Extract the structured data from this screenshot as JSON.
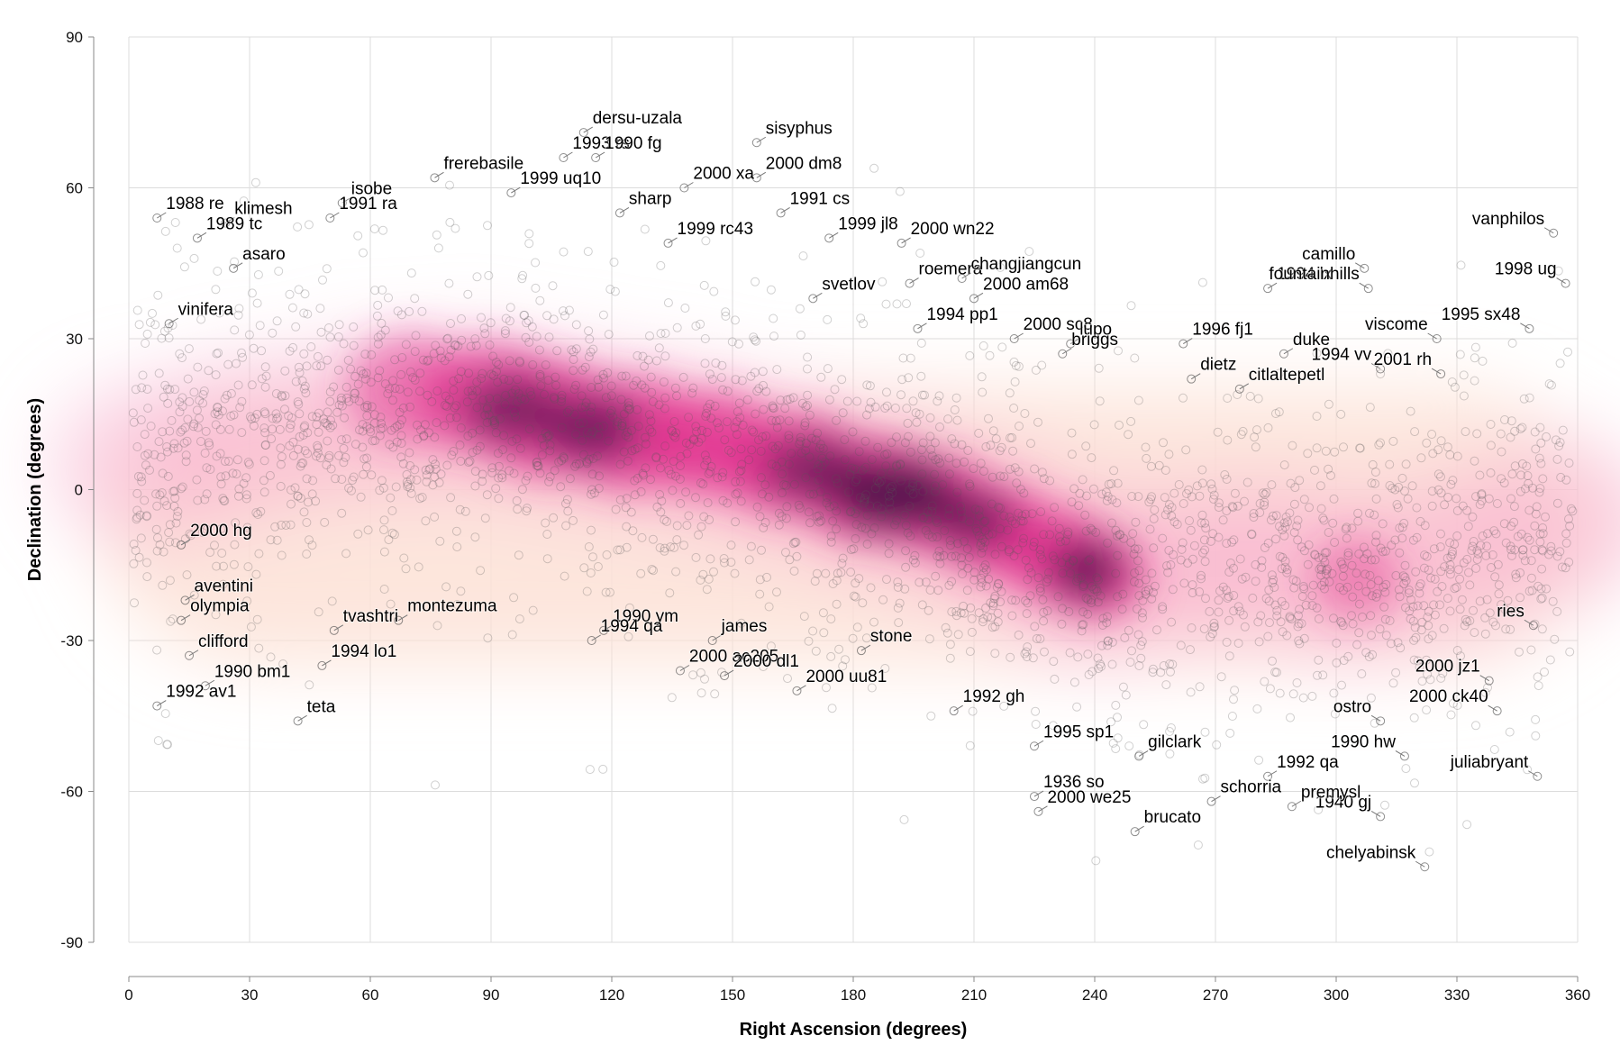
{
  "chart_data": {
    "type": "scatter",
    "title": "",
    "xlabel": "Right Ascension (degrees)",
    "ylabel": "Declination (degrees)",
    "xlim": [
      0,
      360
    ],
    "ylim": [
      -90,
      90
    ],
    "x_ticks": [
      "0",
      "30",
      "60",
      "90",
      "120",
      "150",
      "180",
      "210",
      "240",
      "270",
      "300",
      "330",
      "360"
    ],
    "y_ticks": [
      "90",
      "60",
      "30",
      "0",
      "-30",
      "-60",
      "-90"
    ],
    "grid": true,
    "overlay": "density heatmap (magenta) of point concentration",
    "colors": {
      "density_low": "#fde2d6",
      "density_mid": "#e0338f",
      "density_high": "#2a0a3a",
      "points": "#555555"
    },
    "labeled_points": [
      {
        "name": "dersu-uzala",
        "x": 113,
        "y": 71
      },
      {
        "name": "1993 rs",
        "x": 108,
        "y": 66
      },
      {
        "name": "1990 fg",
        "x": 116,
        "y": 66
      },
      {
        "name": "sisyphus",
        "x": 156,
        "y": 69
      },
      {
        "name": "2000 dm8",
        "x": 156,
        "y": 62
      },
      {
        "name": "2000 xa",
        "x": 138,
        "y": 60
      },
      {
        "name": "frerebasile",
        "x": 76,
        "y": 62
      },
      {
        "name": "isobe",
        "x": 53,
        "y": 57
      },
      {
        "name": "1999 uq10",
        "x": 95,
        "y": 59
      },
      {
        "name": "1991 cs",
        "x": 162,
        "y": 55
      },
      {
        "name": "1988 re",
        "x": 7,
        "y": 54
      },
      {
        "name": "klimesh",
        "x": 24,
        "y": 53
      },
      {
        "name": "1991 ra",
        "x": 50,
        "y": 54
      },
      {
        "name": "sharp",
        "x": 122,
        "y": 55
      },
      {
        "name": "1999 jl8",
        "x": 174,
        "y": 50
      },
      {
        "name": "2000 wn22",
        "x": 192,
        "y": 49
      },
      {
        "name": "1999 rc43",
        "x": 134,
        "y": 49
      },
      {
        "name": "vanphilos",
        "x": 354,
        "y": 51
      },
      {
        "name": "1989 tc",
        "x": 17,
        "y": 50
      },
      {
        "name": "asaro",
        "x": 26,
        "y": 44
      },
      {
        "name": "camillo",
        "x": 307,
        "y": 44
      },
      {
        "name": "roemera",
        "x": 194,
        "y": 41
      },
      {
        "name": "changjiangcun",
        "x": 207,
        "y": 42
      },
      {
        "name": "1994 lx",
        "x": 283,
        "y": 40
      },
      {
        "name": "1998 ug",
        "x": 357,
        "y": 41
      },
      {
        "name": "svetlov",
        "x": 170,
        "y": 38
      },
      {
        "name": "2000 am68",
        "x": 210,
        "y": 38
      },
      {
        "name": "fountainhills",
        "x": 308,
        "y": 40
      },
      {
        "name": "vinifera",
        "x": 10,
        "y": 33
      },
      {
        "name": "1994 pp1",
        "x": 196,
        "y": 32
      },
      {
        "name": "2000 sc8",
        "x": 220,
        "y": 30
      },
      {
        "name": "1996 fj1",
        "x": 262,
        "y": 29
      },
      {
        "name": "viscome",
        "x": 325,
        "y": 30
      },
      {
        "name": "1995 sx48",
        "x": 348,
        "y": 32
      },
      {
        "name": "duke",
        "x": 287,
        "y": 27
      },
      {
        "name": "lupo",
        "x": 234,
        "y": 29
      },
      {
        "name": "1994 vv",
        "x": 311,
        "y": 24
      },
      {
        "name": "briggs",
        "x": 232,
        "y": 27
      },
      {
        "name": "dietz",
        "x": 264,
        "y": 22
      },
      {
        "name": "2001 rh",
        "x": 326,
        "y": 23
      },
      {
        "name": "citlaltepetl",
        "x": 276,
        "y": 20
      },
      {
        "name": "2000 hg",
        "x": 13,
        "y": -11
      },
      {
        "name": "aventini",
        "x": 14,
        "y": -22
      },
      {
        "name": "olympia",
        "x": 13,
        "y": -26
      },
      {
        "name": "tvashtri",
        "x": 51,
        "y": -28
      },
      {
        "name": "montezuma",
        "x": 67,
        "y": -26
      },
      {
        "name": "1990 ym",
        "x": 118,
        "y": -28
      },
      {
        "name": "ries",
        "x": 349,
        "y": -27
      },
      {
        "name": "james",
        "x": 145,
        "y": -30
      },
      {
        "name": "1994 qa",
        "x": 115,
        "y": -30
      },
      {
        "name": "clifford",
        "x": 15,
        "y": -33
      },
      {
        "name": "1994 lo1",
        "x": 48,
        "y": -35
      },
      {
        "name": "2000 ac205",
        "x": 137,
        "y": -36
      },
      {
        "name": "stone",
        "x": 182,
        "y": -32
      },
      {
        "name": "2000 jz1",
        "x": 338,
        "y": -38
      },
      {
        "name": "1990 bm1",
        "x": 19,
        "y": -39
      },
      {
        "name": "2000 dl1",
        "x": 148,
        "y": -37
      },
      {
        "name": "1992 gh",
        "x": 205,
        "y": -44
      },
      {
        "name": "2000 uu81",
        "x": 166,
        "y": -40
      },
      {
        "name": "teta",
        "x": 42,
        "y": -46
      },
      {
        "name": "1992 av1",
        "x": 7,
        "y": -43
      },
      {
        "name": "2000 ck40",
        "x": 340,
        "y": -44
      },
      {
        "name": "ostro",
        "x": 311,
        "y": -46
      },
      {
        "name": "1995 sp1",
        "x": 225,
        "y": -51
      },
      {
        "name": "gilclark",
        "x": 251,
        "y": -53
      },
      {
        "name": "1990 hw",
        "x": 317,
        "y": -53
      },
      {
        "name": "1936 so",
        "x": 225,
        "y": -61
      },
      {
        "name": "1992 qa",
        "x": 283,
        "y": -57
      },
      {
        "name": "juliabryant",
        "x": 350,
        "y": -57
      },
      {
        "name": "1940 gj",
        "x": 311,
        "y": -65
      },
      {
        "name": "schorria",
        "x": 269,
        "y": -62
      },
      {
        "name": "premysl",
        "x": 289,
        "y": -63
      },
      {
        "name": "2000 we25",
        "x": 226,
        "y": -64
      },
      {
        "name": "brucato",
        "x": 250,
        "y": -68
      },
      {
        "name": "chelyabinsk",
        "x": 322,
        "y": -75
      }
    ]
  }
}
